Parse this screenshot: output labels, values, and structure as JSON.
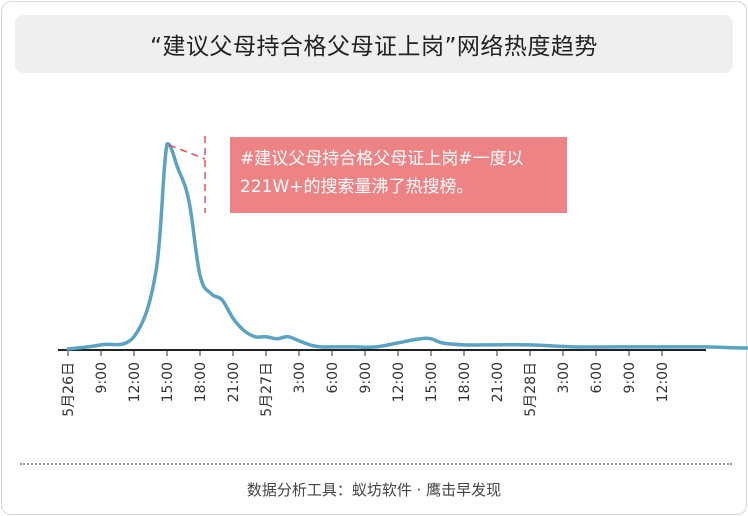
{
  "title": "“建议父母持合格父母证上岗”网络热度趋势",
  "annotation": "#建议父母持合格父母证上岗#一度以221W+的搜索量沸了热搜榜。",
  "source": "数据分析工具：蚁坊软件 · 鹰击早发现",
  "colors": {
    "line": "#5ba3c3",
    "callout": "#ee8385",
    "dashed": "#e0505a"
  },
  "chart_data": {
    "type": "line",
    "title": "“建议父母持合格父母证上岗”网络热度趋势",
    "x_tick_labels": [
      "5月26日",
      "9:00",
      "12:00",
      "15:00",
      "18:00",
      "21:00",
      "5月27日",
      "3:00",
      "6:00",
      "9:00",
      "12:00",
      "15:00",
      "18:00",
      "21:00",
      "5月28日",
      "3:00",
      "6:00",
      "9:00",
      "12:00"
    ],
    "x_unit": "hours since 5月26日 0:00",
    "x": [
      0,
      3,
      6,
      8,
      9,
      10,
      11,
      12,
      13,
      14,
      15,
      16,
      17,
      18,
      19,
      20,
      21,
      22,
      23,
      24,
      26,
      28,
      30,
      32,
      33,
      34,
      36,
      38,
      42,
      46,
      50,
      54,
      58,
      62,
      66,
      70,
      74,
      78,
      82,
      86,
      88
    ],
    "y_relative": [
      0,
      2,
      6,
      38,
      100,
      88,
      72,
      36,
      27,
      24,
      15,
      9,
      6,
      6,
      5,
      6,
      4,
      2,
      1,
      1,
      1,
      1,
      3,
      5,
      5,
      3,
      2,
      2,
      2,
      1,
      1,
      1,
      1,
      0.5,
      1,
      0.5,
      0.5,
      1,
      1,
      1,
      0.5
    ],
    "ylim": [
      0,
      100
    ],
    "annotation_peak_value": "221W+",
    "grid": false,
    "legend": "none"
  }
}
